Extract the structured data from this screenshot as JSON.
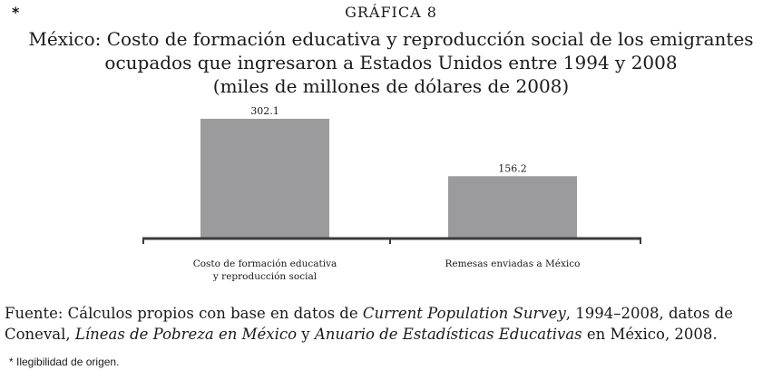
{
  "header": {
    "asterisk": "*",
    "kicker": "GRÁFICA 8",
    "title_lines": [
      "México: Costo de formación educativa y reproducción social de los emigrantes",
      "ocupados que ingresaron a Estados Unidos entre 1994 y 2008",
      "(miles de millones de dólares de 2008)"
    ]
  },
  "chart_data": {
    "type": "bar",
    "title": "México: Costo de formación educativa y reproducción social de los emigrantes ocupados que ingresaron a Estados Unidos entre 1994 y 2008",
    "subtitle": "(miles de millones de dólares de 2008)",
    "xlabel": "",
    "ylabel": "",
    "categories": [
      [
        "Costo de formación educativa",
        "y reproducción social"
      ],
      [
        "Remesas enviadas a México"
      ]
    ],
    "values": [
      302.1,
      156.2
    ],
    "value_labels": [
      "302.1",
      "156.2"
    ],
    "ylim": [
      0,
      302.1
    ],
    "grid": false,
    "legend": "none",
    "colors": {
      "bar": "#9b9b9d",
      "axis": "#3a3a3a",
      "text": "#1a1a1a"
    }
  },
  "source": {
    "line1": {
      "prefix": "Fuente: Cálculos propios con base en datos de ",
      "italic1": "Current Population Survey",
      "suffix": ", 1994–2008, datos de"
    },
    "line2": {
      "prefix": "Coneval, ",
      "italic1": "Líneas de Pobreza en México",
      "mid": " y ",
      "italic2": "Anuario de Estadísticas Educativas",
      "suffix": " en México, 2008."
    }
  },
  "footnote": "* Ilegibilidad de origen."
}
